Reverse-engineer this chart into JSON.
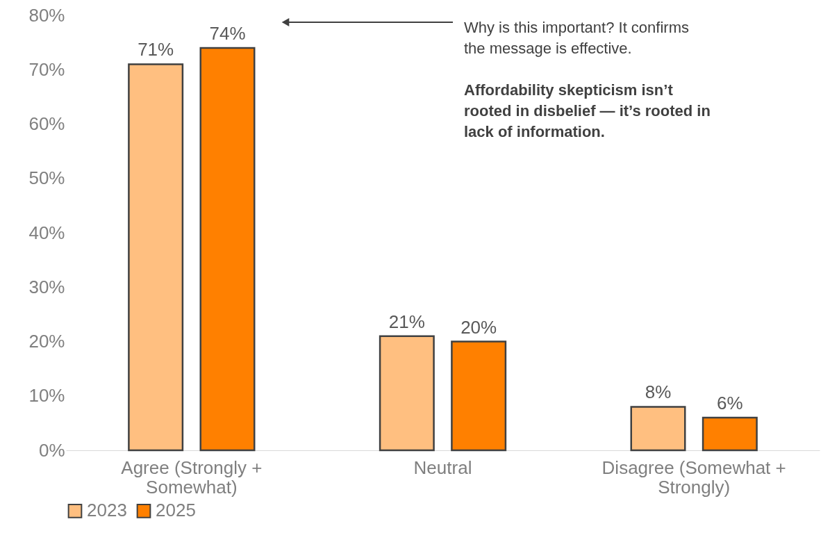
{
  "chart_data": {
    "type": "bar",
    "categories": [
      "Agree (Strongly + Somewhat)",
      "Neutral",
      "Disagree (Somewhat + Strongly)"
    ],
    "series": [
      {
        "name": "2023",
        "color": "#ffbf80",
        "values": [
          71,
          21,
          8
        ]
      },
      {
        "name": "2025",
        "color": "#ff8000",
        "values": [
          74,
          20,
          6
        ]
      }
    ],
    "ylim": [
      0,
      80
    ],
    "yticks": [
      {
        "value": 0,
        "label": "0%"
      },
      {
        "value": 10,
        "label": "10%"
      },
      {
        "value": 20,
        "label": "20%"
      },
      {
        "value": 30,
        "label": "30%"
      },
      {
        "value": 40,
        "label": "40%"
      },
      {
        "value": 50,
        "label": "50%"
      },
      {
        "value": 60,
        "label": "60%"
      },
      {
        "value": 70,
        "label": "70%"
      },
      {
        "value": 80,
        "label": "80%"
      }
    ],
    "value_labels": [
      [
        "71%",
        "21%",
        "8%"
      ],
      [
        "74%",
        "20%",
        "6%"
      ]
    ],
    "annotations": [
      "Why is this important? It confirms the message is effective.",
      "Affordability skepticism isn’t rooted in disbelief — it’s rooted in lack of information."
    ],
    "grid": false,
    "legend": "bottom"
  }
}
